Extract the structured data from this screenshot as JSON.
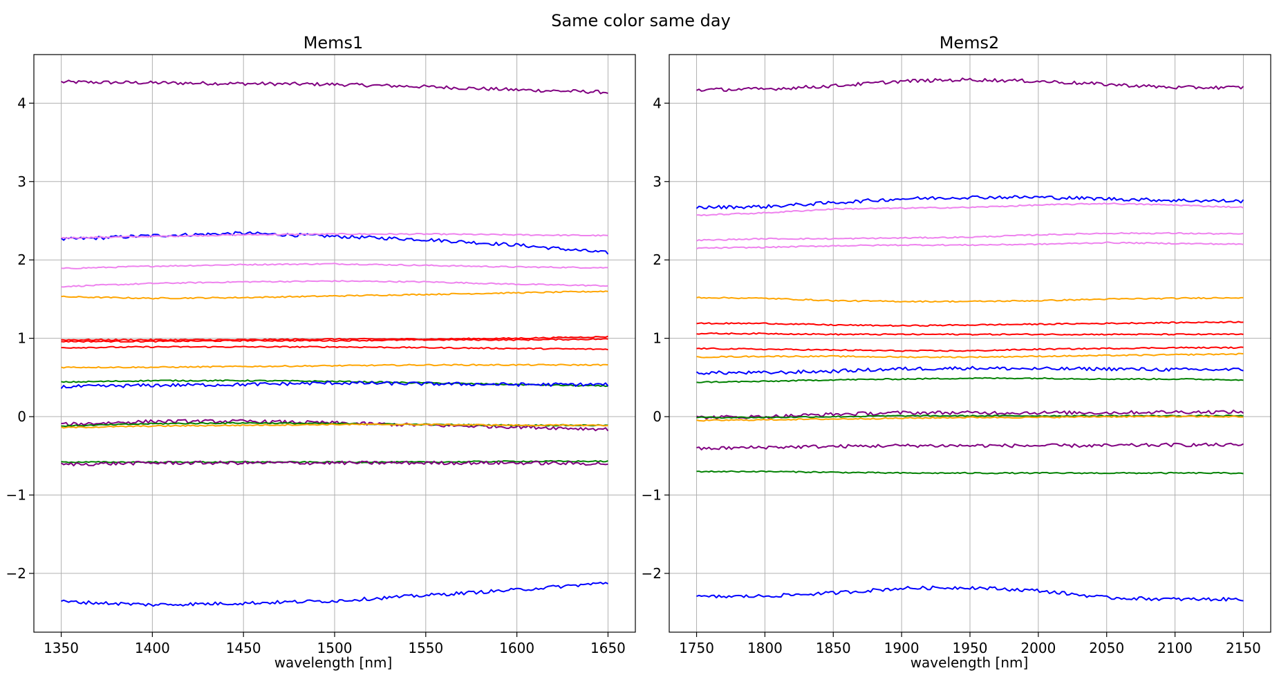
{
  "figure": {
    "suptitle": "Same color same day"
  },
  "chart_data": [
    {
      "type": "line",
      "title": "Mems1",
      "xlabel": "wavelength [nm]",
      "ylabel": "",
      "xlim": [
        1335,
        1665
      ],
      "ylim": [
        -2.75,
        4.62
      ],
      "xticks": [
        1350,
        1400,
        1450,
        1500,
        1550,
        1600,
        1650
      ],
      "yticks": [
        -2,
        -1,
        0,
        1,
        2,
        3,
        4
      ],
      "ytick_labels": [
        "−2",
        "−1",
        "0",
        "1",
        "2",
        "3",
        "4"
      ],
      "grid": true,
      "x": [
        1350,
        1400,
        1450,
        1500,
        1550,
        1600,
        1650
      ],
      "series": [
        {
          "color": "#800080",
          "values": [
            4.27,
            4.26,
            4.25,
            4.24,
            4.21,
            4.17,
            4.14
          ]
        },
        {
          "color": "#0000ff",
          "values": [
            2.26,
            2.31,
            2.34,
            2.3,
            2.26,
            2.19,
            2.09
          ]
        },
        {
          "color": "#ee82ee",
          "values": [
            2.28,
            2.3,
            2.32,
            2.33,
            2.33,
            2.32,
            2.31
          ]
        },
        {
          "color": "#ee82ee",
          "values": [
            1.89,
            1.92,
            1.94,
            1.95,
            1.93,
            1.91,
            1.9
          ]
        },
        {
          "color": "#ee82ee",
          "values": [
            1.66,
            1.7,
            1.72,
            1.73,
            1.72,
            1.69,
            1.67
          ]
        },
        {
          "color": "#ffa500",
          "values": [
            1.53,
            1.51,
            1.52,
            1.54,
            1.56,
            1.58,
            1.6
          ]
        },
        {
          "color": "#ff0000",
          "values": [
            0.98,
            0.98,
            0.98,
            0.99,
            0.99,
            1.0,
            1.02
          ]
        },
        {
          "color": "#ff0000",
          "values": [
            0.96,
            0.96,
            0.97,
            0.97,
            0.98,
            0.98,
            0.99
          ]
        },
        {
          "color": "#ff0000",
          "values": [
            0.88,
            0.89,
            0.89,
            0.89,
            0.88,
            0.87,
            0.86
          ]
        },
        {
          "color": "#ffa500",
          "values": [
            0.63,
            0.63,
            0.64,
            0.65,
            0.66,
            0.66,
            0.66
          ]
        },
        {
          "color": "#008000",
          "values": [
            0.44,
            0.46,
            0.46,
            0.45,
            0.43,
            0.41,
            0.39
          ]
        },
        {
          "color": "#0000ff",
          "values": [
            0.38,
            0.4,
            0.41,
            0.43,
            0.42,
            0.41,
            0.41
          ]
        },
        {
          "color": "#800080",
          "values": [
            -0.1,
            -0.06,
            -0.06,
            -0.08,
            -0.11,
            -0.13,
            -0.16
          ]
        },
        {
          "color": "#008000",
          "values": [
            -0.12,
            -0.09,
            -0.08,
            -0.09,
            -0.1,
            -0.11,
            -0.11
          ]
        },
        {
          "color": "#ffa500",
          "values": [
            -0.14,
            -0.12,
            -0.11,
            -0.1,
            -0.1,
            -0.11,
            -0.11
          ]
        },
        {
          "color": "#008000",
          "values": [
            -0.58,
            -0.58,
            -0.58,
            -0.58,
            -0.58,
            -0.57,
            -0.57
          ]
        },
        {
          "color": "#800080",
          "values": [
            -0.61,
            -0.59,
            -0.59,
            -0.59,
            -0.59,
            -0.59,
            -0.6
          ]
        },
        {
          "color": "#0000ff",
          "values": [
            -2.36,
            -2.4,
            -2.38,
            -2.35,
            -2.28,
            -2.21,
            -2.12
          ]
        }
      ]
    },
    {
      "type": "line",
      "title": "Mems2",
      "xlabel": "wavelength [nm]",
      "ylabel": "",
      "xlim": [
        1730,
        2170
      ],
      "ylim": [
        -2.75,
        4.62
      ],
      "xticks": [
        1750,
        1800,
        1850,
        1900,
        1950,
        2000,
        2050,
        2100,
        2150
      ],
      "yticks": [
        -2,
        -1,
        0,
        1,
        2,
        3,
        4
      ],
      "ytick_labels": [
        "−2",
        "−1",
        "0",
        "1",
        "2",
        "3",
        "4"
      ],
      "grid": true,
      "x": [
        1750,
        1800,
        1850,
        1900,
        1950,
        2000,
        2050,
        2100,
        2150
      ],
      "series": [
        {
          "color": "#800080",
          "values": [
            4.17,
            4.18,
            4.22,
            4.28,
            4.3,
            4.28,
            4.24,
            4.2,
            4.2
          ]
        },
        {
          "color": "#0000ff",
          "values": [
            2.67,
            2.68,
            2.73,
            2.78,
            2.8,
            2.8,
            2.78,
            2.76,
            2.75
          ]
        },
        {
          "color": "#ee82ee",
          "values": [
            2.57,
            2.6,
            2.65,
            2.66,
            2.67,
            2.7,
            2.72,
            2.7,
            2.67
          ]
        },
        {
          "color": "#ee82ee",
          "values": [
            2.25,
            2.27,
            2.27,
            2.28,
            2.29,
            2.32,
            2.34,
            2.34,
            2.33
          ]
        },
        {
          "color": "#ee82ee",
          "values": [
            2.15,
            2.16,
            2.18,
            2.19,
            2.19,
            2.2,
            2.22,
            2.21,
            2.2
          ]
        },
        {
          "color": "#ffa500",
          "values": [
            1.52,
            1.51,
            1.48,
            1.47,
            1.47,
            1.48,
            1.5,
            1.51,
            1.52
          ]
        },
        {
          "color": "#ff0000",
          "values": [
            1.19,
            1.19,
            1.17,
            1.16,
            1.17,
            1.18,
            1.19,
            1.2,
            1.21
          ]
        },
        {
          "color": "#ff0000",
          "values": [
            1.06,
            1.06,
            1.05,
            1.05,
            1.05,
            1.05,
            1.05,
            1.05,
            1.05
          ]
        },
        {
          "color": "#ff0000",
          "values": [
            0.87,
            0.86,
            0.85,
            0.84,
            0.84,
            0.86,
            0.87,
            0.88,
            0.88
          ]
        },
        {
          "color": "#ffa500",
          "values": [
            0.76,
            0.77,
            0.77,
            0.76,
            0.76,
            0.77,
            0.78,
            0.79,
            0.8
          ]
        },
        {
          "color": "#0000ff",
          "values": [
            0.56,
            0.56,
            0.58,
            0.61,
            0.62,
            0.61,
            0.61,
            0.6,
            0.6
          ]
        },
        {
          "color": "#008000",
          "values": [
            0.44,
            0.45,
            0.47,
            0.48,
            0.49,
            0.49,
            0.48,
            0.48,
            0.47
          ]
        },
        {
          "color": "#800080",
          "values": [
            -0.01,
            0.0,
            0.03,
            0.05,
            0.05,
            0.05,
            0.05,
            0.06,
            0.06
          ]
        },
        {
          "color": "#008000",
          "values": [
            -0.01,
            -0.01,
            0.0,
            0.01,
            0.01,
            0.01,
            0.01,
            0.01,
            0.01
          ]
        },
        {
          "color": "#ffa500",
          "values": [
            -0.05,
            -0.04,
            -0.03,
            -0.02,
            -0.01,
            -0.01,
            0.0,
            0.0,
            0.0
          ]
        },
        {
          "color": "#800080",
          "values": [
            -0.41,
            -0.39,
            -0.38,
            -0.37,
            -0.37,
            -0.37,
            -0.37,
            -0.36,
            -0.36
          ]
        },
        {
          "color": "#008000",
          "values": [
            -0.7,
            -0.7,
            -0.71,
            -0.72,
            -0.72,
            -0.72,
            -0.72,
            -0.72,
            -0.72
          ]
        },
        {
          "color": "#0000ff",
          "values": [
            -2.3,
            -2.29,
            -2.25,
            -2.19,
            -2.18,
            -2.22,
            -2.31,
            -2.33,
            -2.33
          ]
        }
      ]
    }
  ]
}
